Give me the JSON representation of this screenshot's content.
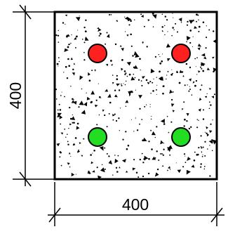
{
  "section": {
    "width_label": "400",
    "height_label": "400"
  },
  "rebars": {
    "top": {
      "color": "#ff2020",
      "count": 2
    },
    "bottom": {
      "color": "#22dd22",
      "count": 2
    }
  }
}
